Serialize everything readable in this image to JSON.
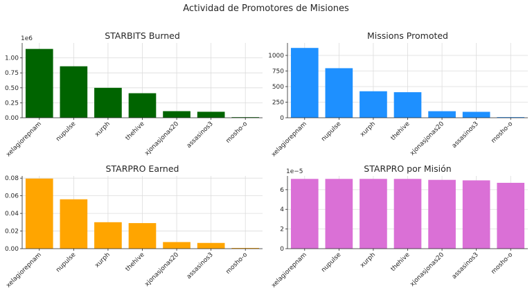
{
  "figure": {
    "title": "Actividad de Promotores de Misiones"
  },
  "chart_data": [
    {
      "type": "bar",
      "title": "STARBITS Burned",
      "categories": [
        "xelagiorepnam",
        "nupulse",
        "xurph",
        "thehive",
        "xjonasjonas20",
        "assasinos3",
        "mosho-o"
      ],
      "values": [
        1150000,
        860000,
        500000,
        410000,
        110000,
        100000,
        10000
      ],
      "ylim": [
        0,
        1250000
      ],
      "yticks": [
        0,
        250000,
        500000,
        750000,
        1000000
      ],
      "ytick_labels": [
        "0.00",
        "0.25",
        "0.50",
        "0.75",
        "1.00"
      ],
      "offset_text": "1e6",
      "color": "#006400",
      "grid": true
    },
    {
      "type": "bar",
      "title": "Missions Promoted",
      "categories": [
        "xelagiorepnam",
        "nupulse",
        "xurph",
        "thehive",
        "xjonasjonas20",
        "assasinos3",
        "mosho-o"
      ],
      "values": [
        1120,
        795,
        425,
        410,
        105,
        95,
        10
      ],
      "ylim": [
        0,
        1200
      ],
      "yticks": [
        0,
        250,
        500,
        750,
        1000
      ],
      "ytick_labels": [
        "0",
        "250",
        "500",
        "750",
        "1000"
      ],
      "offset_text": "",
      "color": "#1e90ff",
      "grid": true
    },
    {
      "type": "bar",
      "title": "STARPRO Earned",
      "categories": [
        "xelagiorepnam",
        "nupulse",
        "xurph",
        "thehive",
        "xjonasjonas20",
        "assasinos3",
        "mosho-o"
      ],
      "values": [
        0.0795,
        0.056,
        0.03,
        0.029,
        0.0075,
        0.0065,
        0.0008
      ],
      "ylim": [
        0,
        0.0825
      ],
      "yticks": [
        0,
        0.02,
        0.04,
        0.06,
        0.08
      ],
      "ytick_labels": [
        "0.00",
        "0.02",
        "0.04",
        "0.06",
        "0.08"
      ],
      "offset_text": "",
      "color": "#ffa500",
      "grid": true
    },
    {
      "type": "bar",
      "title": "STARPRO por Misión",
      "categories": [
        "xelagiorepnam",
        "nupulse",
        "xurph",
        "thehive",
        "xjonasjonas20",
        "assasinos3",
        "mosho-o"
      ],
      "values": [
        7.1e-05,
        7.1e-05,
        7.1e-05,
        7.1e-05,
        7e-05,
        6.95e-05,
        6.7e-05
      ],
      "ylim": [
        0,
        7.4e-05
      ],
      "yticks": [
        0,
        2e-05,
        4e-05,
        6e-05
      ],
      "ytick_labels": [
        "0",
        "2",
        "4",
        "6"
      ],
      "offset_text": "1e−5",
      "color": "#da70d6",
      "grid": true
    }
  ]
}
